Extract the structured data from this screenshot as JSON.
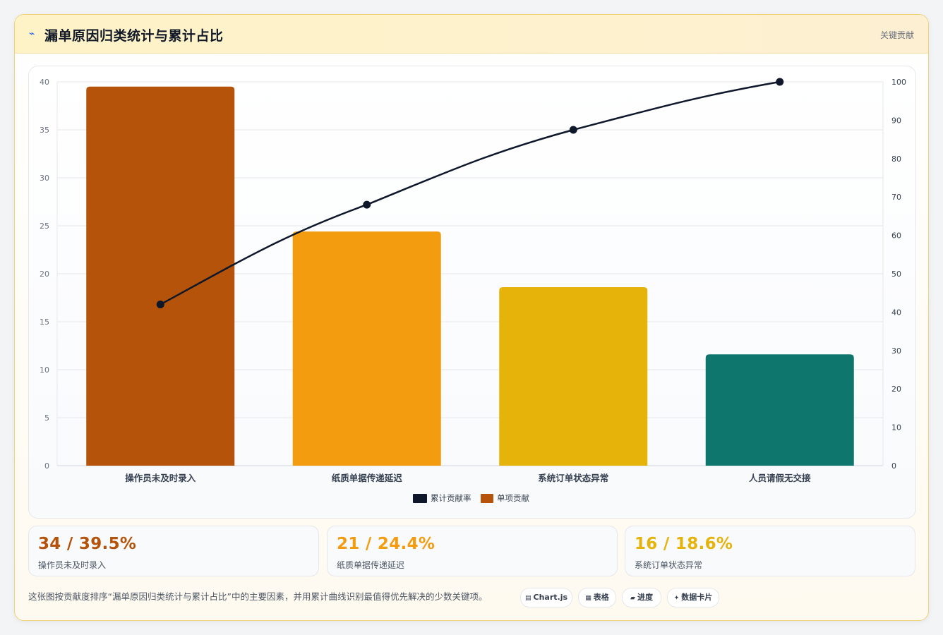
{
  "header": {
    "icon": "lightning-icon",
    "title": "漏单原因归类统计与累计占比",
    "tag": "关键贡献"
  },
  "chart_data": {
    "type": "bar",
    "categories": [
      "操作员未及时录入",
      "纸质单据传递延迟",
      "系统订单状态异常",
      "人员请假无交接"
    ],
    "series": [
      {
        "name": "单项贡献",
        "type": "bar",
        "values": [
          39.5,
          24.4,
          18.6,
          11.6
        ],
        "colors": [
          "#b45309",
          "#f39c0f",
          "#e5b309",
          "#0f766e"
        ]
      },
      {
        "name": "累计贡献率",
        "type": "line",
        "values": [
          42,
          68,
          87.5,
          100
        ],
        "color": "#0f172a"
      }
    ],
    "y_left": {
      "ylim": [
        0,
        40
      ],
      "ticks": [
        0,
        5,
        10,
        15,
        20,
        25,
        30,
        35,
        40
      ]
    },
    "y_right": {
      "ylim": [
        0,
        100
      ],
      "ticks": [
        0,
        10,
        20,
        30,
        40,
        50,
        60,
        70,
        80,
        90,
        100
      ]
    },
    "grid": true,
    "legend_position": "bottom"
  },
  "stats": [
    {
      "value": "34 / 39.5%",
      "label": "操作员未及时录入",
      "color": "#b45309"
    },
    {
      "value": "21 / 24.4%",
      "label": "纸质单据传递延迟",
      "color": "#f39c0f"
    },
    {
      "value": "16 / 18.6%",
      "label": "系统订单状态异常",
      "color": "#e5b309"
    }
  ],
  "footer": {
    "note": "这张图按贡献度排序“漏单原因归类统计与累计占比”中的主要因素，并用累计曲线识别最值得优先解决的少数关键项。",
    "chips": [
      {
        "icon": "chart-icon",
        "label": "Chart.js"
      },
      {
        "icon": "table-icon",
        "label": "表格"
      },
      {
        "icon": "progress-icon",
        "label": "进度"
      },
      {
        "icon": "sparkle-icon",
        "label": "数据卡片"
      }
    ]
  }
}
